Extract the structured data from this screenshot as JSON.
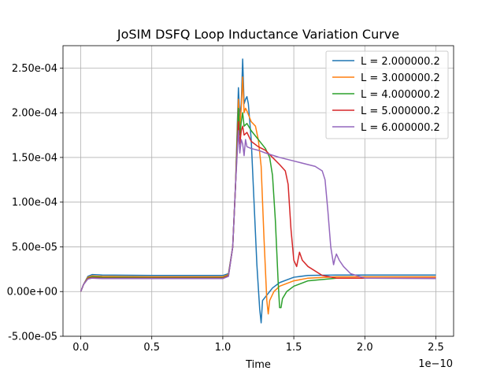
{
  "chart_data": {
    "type": "line",
    "title": "JoSIM DSFQ Loop Inductance Variation Curve",
    "xlabel": "Time",
    "ylabel": "",
    "x_offset_label": "1e−10",
    "xlim": [
      -1.25e-11,
      2.625e-10
    ],
    "ylim": [
      -5e-05,
      0.000275
    ],
    "xticks": [
      0,
      5e-11,
      1e-10,
      1.5e-10,
      2e-10,
      2.5e-10
    ],
    "xtick_labels": [
      "0.0",
      "0.5",
      "1.0",
      "1.5",
      "2.0",
      "2.5"
    ],
    "yticks": [
      -5e-05,
      0,
      5e-05,
      0.0001,
      0.00015,
      0.0002,
      0.00025
    ],
    "ytick_labels": [
      "-5.00e-05",
      "0.00e+00",
      "5.00e-05",
      "1.00e-04",
      "1.50e-04",
      "2.00e-04",
      "2.50e-04"
    ],
    "grid": true,
    "legend_position": "top-right",
    "series": [
      {
        "name": "L = 2.000000.2",
        "color": "#1f77b4",
        "points": [
          [
            0,
            0
          ],
          [
            2e-12,
            8e-06
          ],
          [
            5e-12,
            1.7e-05
          ],
          [
            8e-12,
            1.9e-05
          ],
          [
            1.5e-11,
            1.85e-05
          ],
          [
            5e-11,
            1.8e-05
          ],
          [
            1e-10,
            1.8e-05
          ],
          [
            1.04e-10,
            2e-05
          ],
          [
            1.07e-10,
            5e-05
          ],
          [
            1.09e-10,
            0.00012
          ],
          [
            1.11e-10,
            0.000228
          ],
          [
            1.12e-10,
            0.000195
          ],
          [
            1.13e-10,
            0.00021
          ],
          [
            1.14e-10,
            0.00026
          ],
          [
            1.15e-10,
            0.00021
          ],
          [
            1.16e-10,
            0.000215
          ],
          [
            1.17e-10,
            0.000218
          ],
          [
            1.18e-10,
            0.00021
          ],
          [
            1.2e-10,
            0.00017
          ],
          [
            1.22e-10,
            0.0001
          ],
          [
            1.24e-10,
            3e-05
          ],
          [
            1.26e-10,
            -2e-05
          ],
          [
            1.27e-10,
            -3.5e-05
          ],
          [
            1.28e-10,
            -1e-05
          ],
          [
            1.3e-10,
            -6e-06
          ],
          [
            1.35e-10,
            4e-06
          ],
          [
            1.4e-10,
            1e-05
          ],
          [
            1.5e-10,
            1.6e-05
          ],
          [
            1.6e-10,
            1.8e-05
          ],
          [
            1.8e-10,
            1.85e-05
          ],
          [
            2.5e-10,
            1.85e-05
          ]
        ]
      },
      {
        "name": "L = 3.000000.2",
        "color": "#ff7f0e",
        "points": [
          [
            0,
            0
          ],
          [
            2e-12,
            8e-06
          ],
          [
            5e-12,
            1.6e-05
          ],
          [
            8e-12,
            1.75e-05
          ],
          [
            1.5e-11,
            1.7e-05
          ],
          [
            5e-11,
            1.65e-05
          ],
          [
            1e-10,
            1.65e-05
          ],
          [
            1.04e-10,
            1.9e-05
          ],
          [
            1.07e-10,
            5e-05
          ],
          [
            1.09e-10,
            0.00012
          ],
          [
            1.11e-10,
            0.000215
          ],
          [
            1.12e-10,
            0.000185
          ],
          [
            1.13e-10,
            0.000205
          ],
          [
            1.14e-10,
            0.00024
          ],
          [
            1.15e-10,
            0.0002
          ],
          [
            1.16e-10,
            0.000205
          ],
          [
            1.17e-10,
            0.000202
          ],
          [
            1.2e-10,
            0.00019
          ],
          [
            1.23e-10,
            0.000185
          ],
          [
            1.25e-10,
            0.00017
          ],
          [
            1.27e-10,
            0.00014
          ],
          [
            1.29e-10,
            6e-05
          ],
          [
            1.31e-10,
            -1e-05
          ],
          [
            1.32e-10,
            -2.5e-05
          ],
          [
            1.33e-10,
            -1e-05
          ],
          [
            1.36e-10,
            0
          ],
          [
            1.4e-10,
            6e-06
          ],
          [
            1.5e-10,
            1.2e-05
          ],
          [
            1.6e-10,
            1.5e-05
          ],
          [
            1.8e-10,
            1.65e-05
          ],
          [
            2.5e-10,
            1.65e-05
          ]
        ]
      },
      {
        "name": "L = 4.000000.2",
        "color": "#2ca02c",
        "points": [
          [
            0,
            0
          ],
          [
            2e-12,
            8e-06
          ],
          [
            5e-12,
            1.5e-05
          ],
          [
            8e-12,
            1.65e-05
          ],
          [
            1.5e-11,
            1.6e-05
          ],
          [
            5e-11,
            1.55e-05
          ],
          [
            1e-10,
            1.55e-05
          ],
          [
            1.04e-10,
            1.8e-05
          ],
          [
            1.07e-10,
            5e-05
          ],
          [
            1.09e-10,
            0.00012
          ],
          [
            1.11e-10,
            0.000205
          ],
          [
            1.12e-10,
            0.000175
          ],
          [
            1.13e-10,
            0.00019
          ],
          [
            1.14e-10,
            0.0002
          ],
          [
            1.15e-10,
            0.000185
          ],
          [
            1.17e-10,
            0.000188
          ],
          [
            1.2e-10,
            0.00018
          ],
          [
            1.25e-10,
            0.00017
          ],
          [
            1.3e-10,
            0.00016
          ],
          [
            1.33e-10,
            0.00015
          ],
          [
            1.35e-10,
            0.00013
          ],
          [
            1.37e-10,
            8e-05
          ],
          [
            1.39e-10,
            1e-05
          ],
          [
            1.4e-10,
            -1.8e-05
          ],
          [
            1.41e-10,
            -1.8e-05
          ],
          [
            1.42e-10,
            -8e-06
          ],
          [
            1.45e-10,
            0
          ],
          [
            1.5e-10,
            6e-06
          ],
          [
            1.6e-10,
            1.2e-05
          ],
          [
            1.8e-10,
            1.5e-05
          ],
          [
            2.5e-10,
            1.5e-05
          ]
        ]
      },
      {
        "name": "L = 5.000000.2",
        "color": "#d62728",
        "points": [
          [
            0,
            0
          ],
          [
            2e-12,
            8e-06
          ],
          [
            5e-12,
            1.45e-05
          ],
          [
            8e-12,
            1.55e-05
          ],
          [
            1.5e-11,
            1.5e-05
          ],
          [
            5e-11,
            1.5e-05
          ],
          [
            1e-10,
            1.5e-05
          ],
          [
            1.04e-10,
            1.75e-05
          ],
          [
            1.07e-10,
            5e-05
          ],
          [
            1.09e-10,
            0.00012
          ],
          [
            1.11e-10,
            0.00019
          ],
          [
            1.12e-10,
            0.000165
          ],
          [
            1.13e-10,
            0.00018
          ],
          [
            1.14e-10,
            0.000185
          ],
          [
            1.15e-10,
            0.000175
          ],
          [
            1.17e-10,
            0.000178
          ],
          [
            1.2e-10,
            0.000168
          ],
          [
            1.25e-10,
            0.000162
          ],
          [
            1.3e-10,
            0.000158
          ],
          [
            1.35e-10,
            0.00015
          ],
          [
            1.4e-10,
            0.000142
          ],
          [
            1.44e-10,
            0.000135
          ],
          [
            1.46e-10,
            0.00012
          ],
          [
            1.48e-10,
            7e-05
          ],
          [
            1.5e-10,
            3.5e-05
          ],
          [
            1.52e-10,
            2.8e-05
          ],
          [
            1.54e-10,
            4.4e-05
          ],
          [
            1.56e-10,
            3.5e-05
          ],
          [
            1.6e-10,
            2.8e-05
          ],
          [
            1.7e-10,
            1.8e-05
          ],
          [
            1.8e-10,
            1.5e-05
          ],
          [
            2.5e-10,
            1.5e-05
          ]
        ]
      },
      {
        "name": "L = 6.000000.2",
        "color": "#9467bd",
        "points": [
          [
            0,
            0
          ],
          [
            2e-12,
            8e-06
          ],
          [
            5e-12,
            1.4e-05
          ],
          [
            8e-12,
            1.5e-05
          ],
          [
            1.5e-11,
            1.45e-05
          ],
          [
            5e-11,
            1.45e-05
          ],
          [
            1e-10,
            1.45e-05
          ],
          [
            1.04e-10,
            1.7e-05
          ],
          [
            1.07e-10,
            5e-05
          ],
          [
            1.09e-10,
            0.00012
          ],
          [
            1.11e-10,
            0.00018
          ],
          [
            1.12e-10,
            0.000155
          ],
          [
            1.13e-10,
            0.00017
          ],
          [
            1.14e-10,
            0.000165
          ],
          [
            1.15e-10,
            0.000152
          ],
          [
            1.16e-10,
            0.00017
          ],
          [
            1.17e-10,
            0.000162
          ],
          [
            1.2e-10,
            0.00016
          ],
          [
            1.25e-10,
            0.000158
          ],
          [
            1.3e-10,
            0.000155
          ],
          [
            1.4e-10,
            0.00015
          ],
          [
            1.5e-10,
            0.000146
          ],
          [
            1.6e-10,
            0.000142
          ],
          [
            1.65e-10,
            0.00014
          ],
          [
            1.7e-10,
            0.000135
          ],
          [
            1.72e-10,
            0.000125
          ],
          [
            1.74e-10,
            9e-05
          ],
          [
            1.76e-10,
            5e-05
          ],
          [
            1.78e-10,
            3e-05
          ],
          [
            1.79e-10,
            3.7e-05
          ],
          [
            1.8e-10,
            4.2e-05
          ],
          [
            1.82e-10,
            3.5e-05
          ],
          [
            1.85e-10,
            2.8e-05
          ],
          [
            1.9e-10,
            2e-05
          ],
          [
            2e-10,
            1.5e-05
          ],
          [
            2.5e-10,
            1.45e-05
          ]
        ]
      }
    ]
  }
}
